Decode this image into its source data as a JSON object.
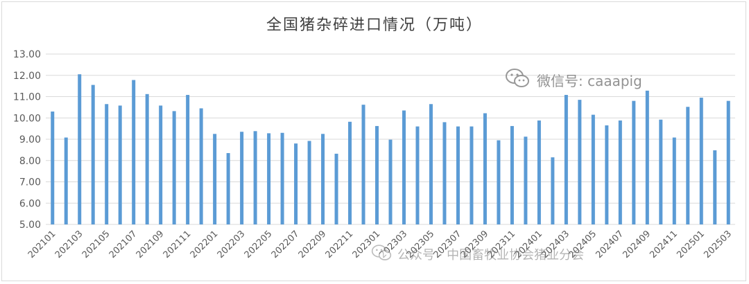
{
  "chart_data": {
    "type": "bar",
    "title": "全国猪杂碎进口情况（万吨）",
    "xlabel": "",
    "ylabel": "",
    "ylim": [
      5.0,
      13.0
    ],
    "yticks": [
      "5.00",
      "6.00",
      "7.00",
      "8.00",
      "9.00",
      "10.00",
      "11.00",
      "12.00",
      "13.00"
    ],
    "grid": true,
    "legend": "none",
    "bar_color": "#5b9bd5",
    "categories": [
      "202101",
      "202102",
      "202103",
      "202104",
      "202105",
      "202106",
      "202107",
      "202108",
      "202109",
      "202110",
      "202111",
      "202112",
      "202201",
      "202202",
      "202203",
      "202204",
      "202205",
      "202206",
      "202207",
      "202208",
      "202209",
      "202210",
      "202211",
      "202212",
      "202301",
      "202302",
      "202303",
      "202304",
      "202305",
      "202306",
      "202307",
      "202308",
      "202309",
      "202310",
      "202311",
      "202312",
      "202401",
      "202402",
      "202403",
      "202404",
      "202405",
      "202406",
      "202407",
      "202408",
      "202409",
      "202410",
      "202411",
      "202412",
      "202501",
      "202502",
      "202503"
    ],
    "tick_labels": [
      "202101",
      "202103",
      "202105",
      "202107",
      "202109",
      "202111",
      "202201",
      "202203",
      "202205",
      "202207",
      "202209",
      "202211",
      "202301",
      "202303",
      "202305",
      "202307",
      "202309",
      "202311",
      "202401",
      "202403",
      "202405",
      "202407",
      "202409",
      "202411",
      "202501",
      "202503"
    ],
    "values": [
      10.3,
      9.08,
      12.05,
      11.55,
      10.65,
      10.58,
      11.78,
      11.12,
      10.58,
      10.32,
      11.08,
      10.45,
      9.25,
      8.35,
      9.35,
      9.38,
      9.28,
      9.3,
      8.8,
      8.92,
      9.25,
      8.32,
      9.82,
      10.62,
      9.62,
      8.98,
      10.35,
      9.6,
      10.65,
      9.8,
      9.6,
      9.6,
      10.22,
      8.95,
      9.62,
      9.12,
      9.88,
      8.15,
      11.08,
      10.85,
      10.15,
      9.65,
      9.88,
      10.8,
      11.28,
      9.92,
      9.08,
      10.52,
      10.95,
      8.48,
      10.8
    ]
  },
  "watermarks": {
    "top": "微信号: caaapig",
    "bottom": "公众号 · 中国畜牧业协会猪业分会"
  }
}
